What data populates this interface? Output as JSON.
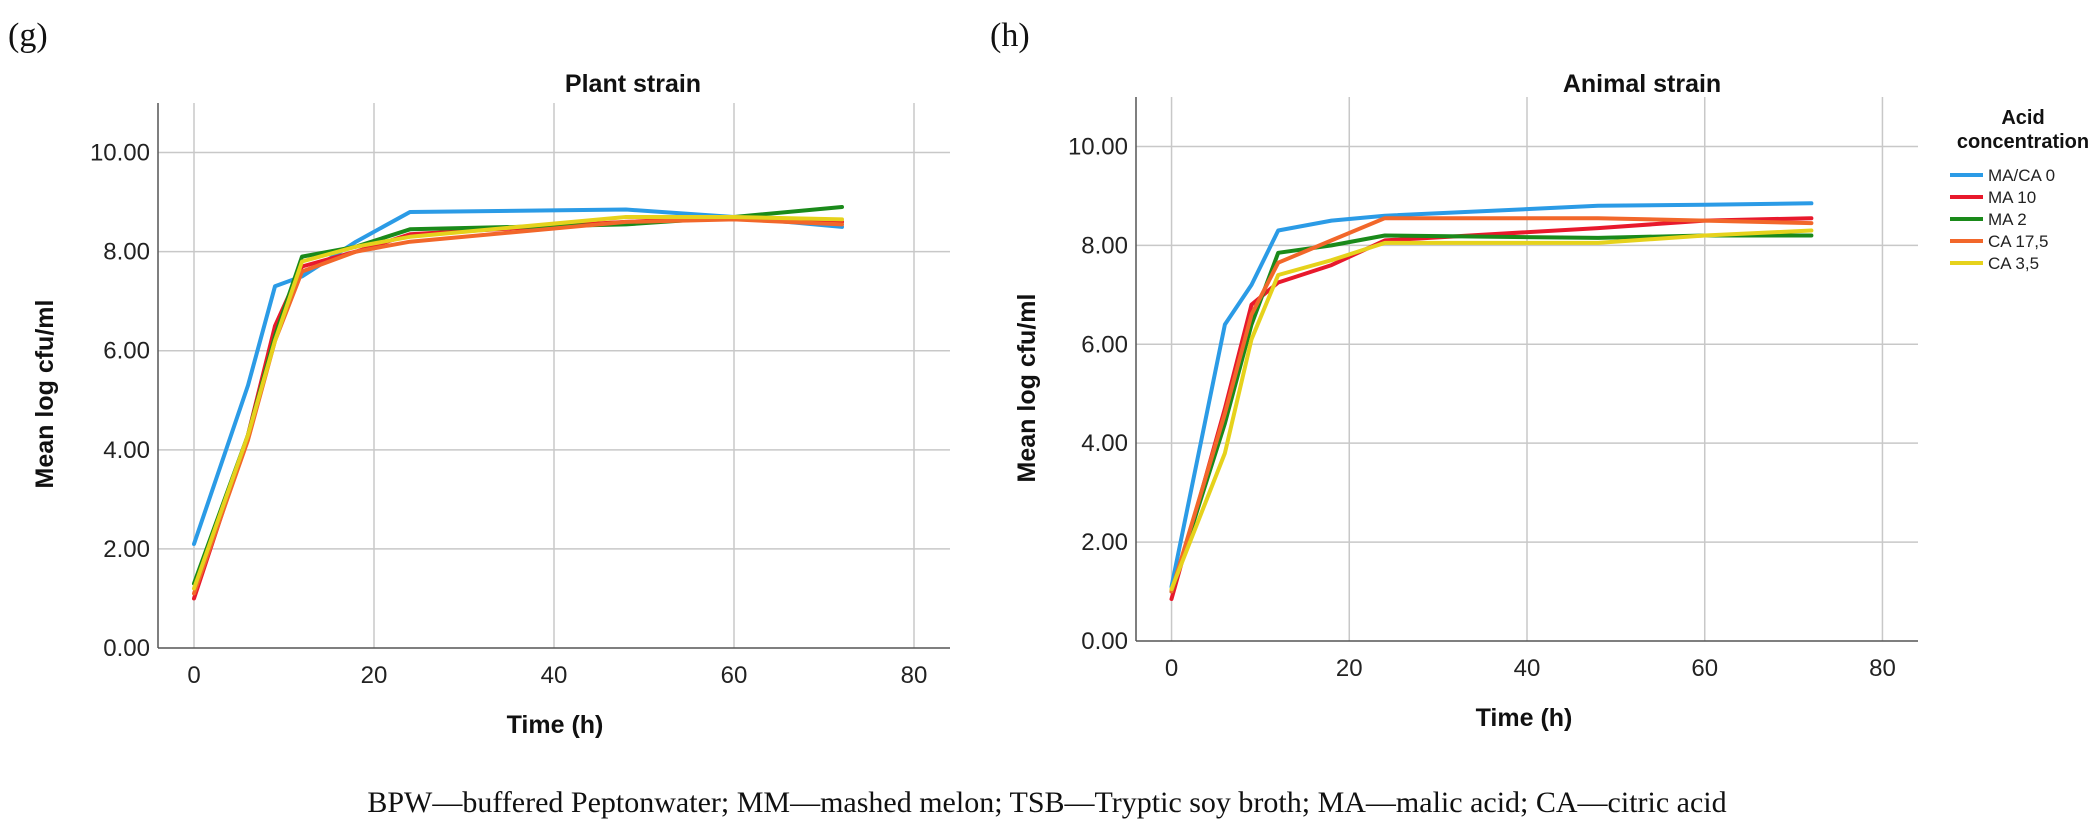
{
  "colors": {
    "MA/CA 0": "#2b9be6",
    "MA 10": "#e8192c",
    "MA 2": "#1a8a1a",
    "CA 17,5": "#f2672a",
    "CA 3,5": "#e6d21c"
  },
  "caption": "BPW—buffered Peptonwater; MM—mashed melon; TSB—Tryptic soy broth; MA—malic acid; CA—citric acid",
  "chart_data": [
    {
      "panel": "(g)",
      "type": "line",
      "title": "Plant strain",
      "xlabel": "Time (h)",
      "ylabel": "Mean log cfu/ml",
      "xlim": [
        -4,
        84
      ],
      "ylim": [
        0,
        11
      ],
      "xticks": [
        0,
        20,
        40,
        60,
        80
      ],
      "xtick_labels": [
        "0",
        "20",
        "40",
        "60",
        "80"
      ],
      "yticks": [
        0,
        2,
        4,
        6,
        8,
        10
      ],
      "ytick_labels": [
        "0.00",
        "2.00",
        "4.00",
        "6.00",
        "8.00",
        "10.00"
      ],
      "grid": true,
      "series": [
        {
          "name": "MA/CA 0",
          "x": [
            0,
            6,
            9,
            12,
            18,
            24,
            48,
            60,
            72
          ],
          "y": [
            2.1,
            5.3,
            7.3,
            7.5,
            8.2,
            8.8,
            8.85,
            8.7,
            8.5
          ]
        },
        {
          "name": "MA 10",
          "x": [
            0,
            6,
            9,
            12,
            18,
            24,
            48,
            60,
            72
          ],
          "y": [
            1.0,
            4.3,
            6.5,
            7.7,
            8.0,
            8.35,
            8.6,
            8.7,
            8.6
          ]
        },
        {
          "name": "MA 2",
          "x": [
            0,
            6,
            9,
            12,
            18,
            24,
            48,
            60,
            72
          ],
          "y": [
            1.3,
            4.3,
            6.3,
            7.9,
            8.1,
            8.45,
            8.55,
            8.7,
            8.9
          ]
        },
        {
          "name": "CA 17,5",
          "x": [
            0,
            6,
            9,
            12,
            18,
            24,
            48,
            60,
            72
          ],
          "y": [
            1.1,
            4.2,
            6.2,
            7.6,
            8.0,
            8.2,
            8.6,
            8.65,
            8.55
          ]
        },
        {
          "name": "CA 3,5",
          "x": [
            0,
            6,
            9,
            12,
            18,
            24,
            48,
            60,
            72
          ],
          "y": [
            1.2,
            4.3,
            6.2,
            7.8,
            8.1,
            8.3,
            8.7,
            8.7,
            8.65
          ]
        }
      ]
    },
    {
      "panel": "(h)",
      "type": "line",
      "title": "Animal strain",
      "xlabel": "Time (h)",
      "ylabel": "Mean log cfu/ml",
      "xlim": [
        -4,
        84
      ],
      "ylim": [
        0,
        11
      ],
      "xticks": [
        0,
        20,
        40,
        60,
        80
      ],
      "xtick_labels": [
        "0",
        "20",
        "40",
        "60",
        "80"
      ],
      "yticks": [
        0,
        2,
        4,
        6,
        8,
        10
      ],
      "ytick_labels": [
        "0.00",
        "2.00",
        "4.00",
        "6.00",
        "8.00",
        "10.00"
      ],
      "grid": true,
      "legend": {
        "title_lines": [
          "Acid",
          "concentration"
        ],
        "position": "right",
        "entries": [
          "MA/CA 0",
          "MA 10",
          "MA 2",
          "CA 17,5",
          "CA 3,5"
        ]
      },
      "series": [
        {
          "name": "MA/CA 0",
          "x": [
            0,
            6,
            9,
            12,
            18,
            24,
            48,
            60,
            72
          ],
          "y": [
            1.1,
            6.4,
            7.2,
            8.3,
            8.5,
            8.6,
            8.8,
            8.82,
            8.85
          ]
        },
        {
          "name": "MA 10",
          "x": [
            0,
            6,
            9,
            12,
            18,
            24,
            48,
            60,
            72
          ],
          "y": [
            0.85,
            4.7,
            6.8,
            7.25,
            7.6,
            8.1,
            8.35,
            8.5,
            8.55
          ]
        },
        {
          "name": "MA 2",
          "x": [
            0,
            6,
            9,
            12,
            18,
            24,
            48,
            60,
            72
          ],
          "y": [
            1.0,
            4.4,
            6.4,
            7.85,
            8.0,
            8.2,
            8.15,
            8.2,
            8.2
          ]
        },
        {
          "name": "CA 17,5",
          "x": [
            0,
            6,
            9,
            12,
            18,
            24,
            48,
            60,
            72
          ],
          "y": [
            1.0,
            4.6,
            6.6,
            7.65,
            8.1,
            8.55,
            8.55,
            8.5,
            8.45
          ]
        },
        {
          "name": "CA 3,5",
          "x": [
            0,
            6,
            9,
            12,
            18,
            24,
            48,
            60,
            72
          ],
          "y": [
            1.05,
            3.8,
            6.1,
            7.4,
            7.7,
            8.05,
            8.05,
            8.2,
            8.3
          ]
        }
      ]
    }
  ]
}
